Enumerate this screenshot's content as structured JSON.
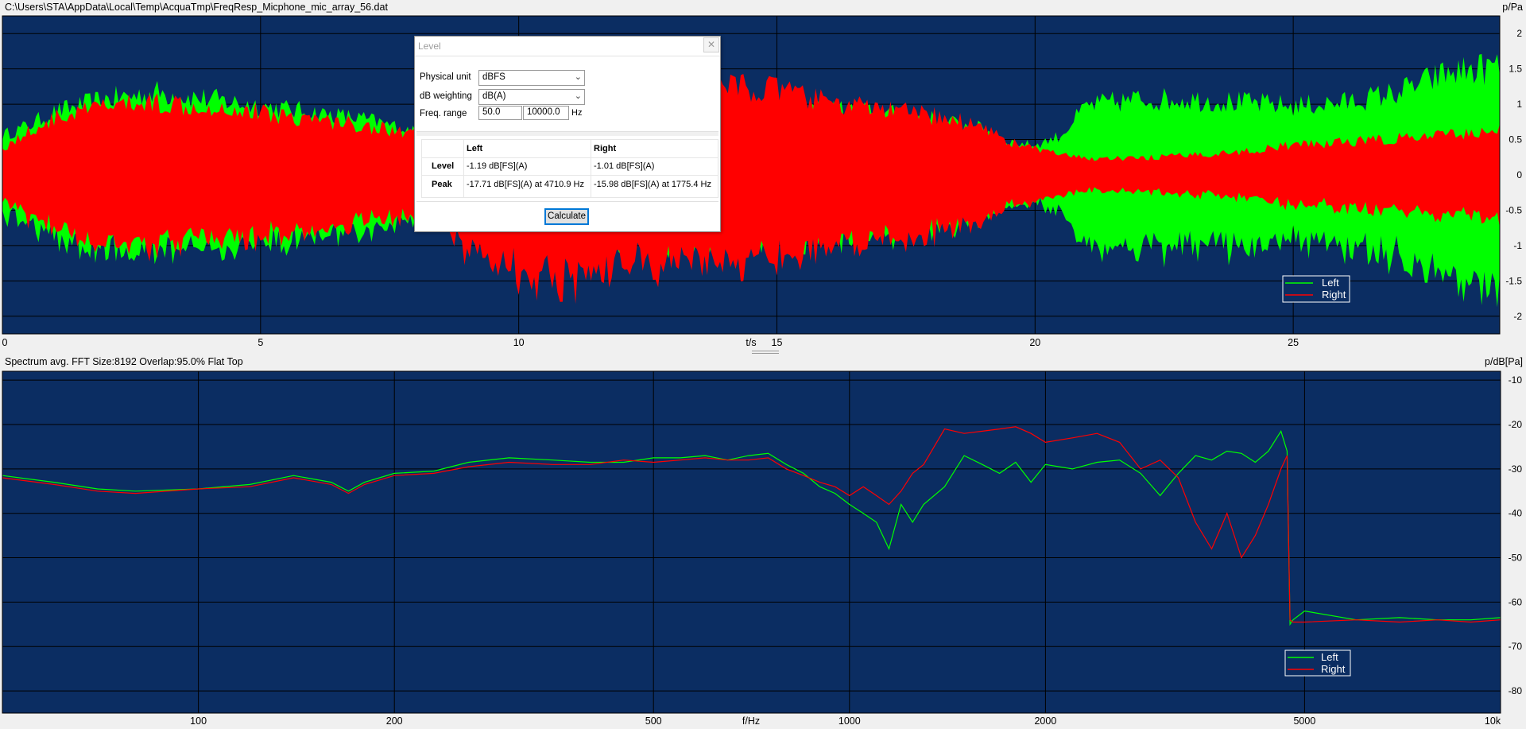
{
  "top": {
    "file_path": "C:\\Users\\STA\\AppData\\Local\\Temp\\AcquaTmp\\FreqResp_Micphone_mic_array_56.dat",
    "unit_label": "p/Pa"
  },
  "bottom": {
    "title": "Spectrum avg.  FFT Size:8192  Overlap:95.0%  Flat Top",
    "unit_label": "p/dB[Pa]"
  },
  "colors": {
    "background": "#0b2d62",
    "left": "#00ff00",
    "right": "#ff0000",
    "grid": "#000000"
  },
  "chart_data": [
    {
      "type": "area",
      "xlabel": "t/s",
      "ylabel": "p/Pa",
      "xlim": [
        0,
        29
      ],
      "ylim": [
        -2.25,
        2.25
      ],
      "x_ticks": [
        0,
        5,
        10,
        15,
        20,
        25
      ],
      "y_ticks": [
        2,
        1.5,
        1,
        0.5,
        0,
        -0.5,
        -1,
        -1.5,
        -2
      ],
      "grid": true,
      "legend_position": "bottom-right",
      "x": [
        0,
        0.5,
        1,
        2,
        3,
        4,
        5,
        6,
        7,
        7.8,
        8.5,
        9,
        9.5,
        10,
        10.5,
        11,
        11.5,
        12,
        13,
        14,
        15,
        16,
        17,
        18,
        19,
        19.5,
        20,
        20.5,
        21,
        22,
        23,
        24,
        25,
        26,
        27,
        28,
        29
      ],
      "series": [
        {
          "name": "Left",
          "values": [
            0.6,
            0.75,
            0.95,
            1.15,
            1.25,
            1.15,
            1.05,
            0.95,
            0.85,
            0.7,
            0.5,
            0.4,
            0.5,
            0.7,
            0.9,
            1.0,
            1.1,
            1.15,
            1.05,
            1.0,
            1.0,
            1.0,
            0.95,
            0.85,
            0.7,
            0.5,
            0.45,
            0.6,
            1.05,
            1.15,
            1.15,
            1.1,
            1.05,
            1.1,
            1.25,
            1.55,
            1.65
          ]
        },
        {
          "name": "Right",
          "values": [
            0.4,
            0.65,
            0.85,
            1.05,
            1.1,
            1.05,
            0.95,
            0.85,
            0.75,
            0.65,
            0.65,
            1.2,
            1.35,
            1.5,
            1.6,
            1.7,
            1.5,
            1.45,
            1.35,
            1.35,
            1.3,
            1.1,
            1.0,
            0.9,
            0.75,
            0.5,
            0.4,
            0.3,
            0.25,
            0.25,
            0.3,
            0.35,
            0.45,
            0.5,
            0.55,
            0.6,
            0.7
          ]
        }
      ]
    },
    {
      "type": "line",
      "xlabel": "f/Hz",
      "ylabel": "p/dB[Pa]",
      "x_scale": "log",
      "xlim": [
        50,
        10000
      ],
      "ylim": [
        -85,
        -8
      ],
      "x_ticks": [
        100,
        200,
        500,
        1000,
        2000,
        5000,
        10000
      ],
      "x_tick_labels": [
        "100",
        "200",
        "500",
        "1000",
        "2000",
        "5000",
        "10k"
      ],
      "y_ticks": [
        -10,
        -20,
        -30,
        -40,
        -50,
        -60,
        -70,
        -80
      ],
      "grid": true,
      "legend_position": "bottom-right",
      "x": [
        50,
        60,
        70,
        80,
        100,
        120,
        140,
        160,
        170,
        180,
        200,
        230,
        260,
        300,
        350,
        400,
        450,
        500,
        550,
        600,
        650,
        700,
        750,
        800,
        850,
        900,
        950,
        1000,
        1050,
        1100,
        1150,
        1200,
        1250,
        1300,
        1400,
        1500,
        1600,
        1700,
        1800,
        1900,
        2000,
        2200,
        2400,
        2600,
        2800,
        3000,
        3200,
        3400,
        3600,
        3800,
        4000,
        4200,
        4400,
        4600,
        4700,
        4750,
        4800,
        5000,
        6000,
        7000,
        8000,
        9000,
        10000
      ],
      "series": [
        {
          "name": "Left",
          "values": [
            -31.5,
            -33,
            -34.5,
            -35,
            -34.5,
            -33.5,
            -31.5,
            -33,
            -35,
            -33,
            -31,
            -30.5,
            -28.5,
            -27.5,
            -28,
            -28.5,
            -28.5,
            -27.5,
            -27.5,
            -27,
            -28,
            -27,
            -26.5,
            -29,
            -31,
            -34,
            -35.5,
            -38,
            -40,
            -42,
            -48,
            -38,
            -42,
            -38,
            -34,
            -27,
            -29,
            -31,
            -28.5,
            -33,
            -29,
            -30,
            -28.5,
            -28,
            -31,
            -36,
            -31,
            -27,
            -28,
            -26,
            -26.5,
            -28.5,
            -26,
            -21.5,
            -26,
            -65,
            -64,
            -62,
            -64,
            -63.5,
            -64,
            -64,
            -63.5
          ]
        },
        {
          "name": "Right",
          "values": [
            -32,
            -33.5,
            -35,
            -35.5,
            -34.5,
            -34,
            -32,
            -33.5,
            -35.5,
            -33.5,
            -31.5,
            -31,
            -29.5,
            -28.5,
            -29,
            -29,
            -28,
            -28.5,
            -28,
            -27.5,
            -28,
            -28,
            -27.5,
            -30,
            -31.5,
            -33,
            -34,
            -36,
            -34,
            -36,
            -38,
            -35,
            -31,
            -29,
            -21,
            -22,
            -21.5,
            -21,
            -20.5,
            -22,
            -24,
            -23,
            -22,
            -24,
            -30,
            -28,
            -32,
            -42,
            -48,
            -40,
            -50,
            -45,
            -38,
            -30,
            -27,
            -64,
            -64.5,
            -64.5,
            -64,
            -64.5,
            -64,
            -64.5,
            -64
          ]
        }
      ]
    }
  ],
  "dialog": {
    "title": "Level",
    "close_glyph": "✕",
    "physical_unit_label": "Physical unit",
    "physical_unit_value": "dBFS",
    "weighting_label": "dB weighting",
    "weighting_value": "dB(A)",
    "freq_range_label": "Freq. range",
    "freq_min": "50.0",
    "freq_max": "10000.0",
    "freq_unit": "Hz",
    "col_left": "Left",
    "col_right": "Right",
    "row_level": "Level",
    "row_peak": "Peak",
    "level_left": "-1.19 dB[FS](A)",
    "level_right": "-1.01 dB[FS](A)",
    "peak_left": "-17.71 dB[FS](A) at 4710.9 Hz",
    "peak_right": "-15.98 dB[FS](A) at 1775.4 Hz",
    "calculate_label": "Calculate"
  }
}
